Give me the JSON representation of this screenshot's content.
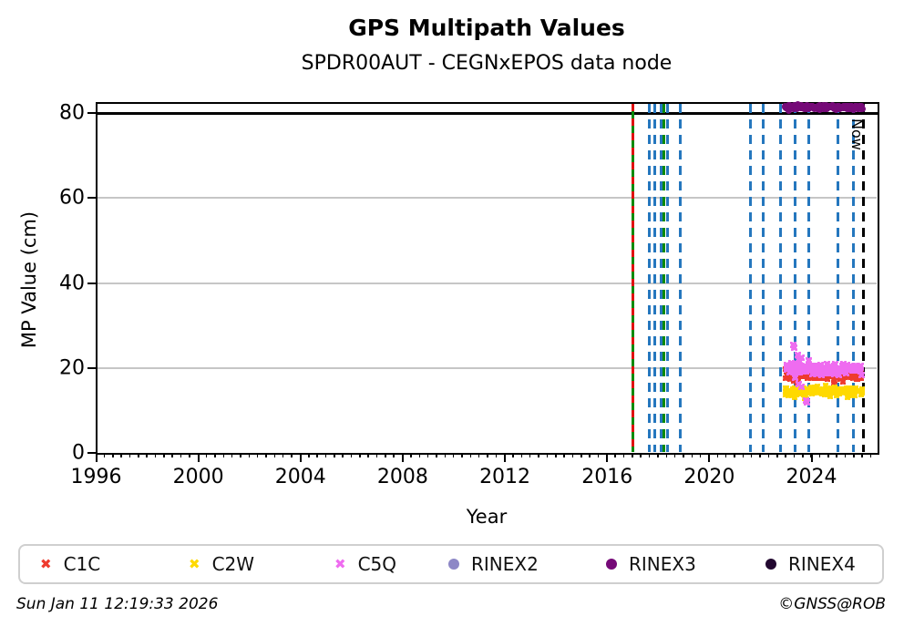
{
  "chart_data": {
    "type": "scatter",
    "title": "GPS Multipath Values",
    "subtitle": "SPDR00AUT - CEGNxEPOS data node",
    "xlabel": "Year",
    "ylabel": "MP Value (cm)",
    "xlim": [
      1995.96,
      2026.6
    ],
    "ylim": [
      0,
      82.4
    ],
    "xticks": [
      1996,
      2000,
      2004,
      2008,
      2012,
      2016,
      2020,
      2024
    ],
    "yticks": [
      0,
      20,
      40,
      60,
      80
    ],
    "grid_y": [
      20,
      40,
      60
    ],
    "grid_color": "#c6c6c6",
    "threshold_line": {
      "y": 80,
      "color": "#000000",
      "style": "solid"
    },
    "now_line": {
      "year": 2026.03,
      "label": "Now",
      "color": "#000000",
      "style": "dashed"
    },
    "event_lines": [
      {
        "year": 2017.0,
        "color": "#0a8a0a",
        "style": "solid",
        "overlay_color": "#e01111",
        "overlay_style": "dashed"
      },
      {
        "year": 2017.65,
        "color": "#2577be",
        "style": "dashed"
      },
      {
        "year": 2017.85,
        "color": "#2577be",
        "style": "dashed"
      },
      {
        "year": 2018.1,
        "color": "#2577be",
        "style": "dashed"
      },
      {
        "year": 2018.22,
        "color": "#0a8a0a",
        "style": "dashed"
      },
      {
        "year": 2018.38,
        "color": "#2577be",
        "style": "dashed"
      },
      {
        "year": 2018.85,
        "color": "#2577be",
        "style": "dashed"
      },
      {
        "year": 2021.6,
        "color": "#2577be",
        "style": "dashed"
      },
      {
        "year": 2022.1,
        "color": "#2577be",
        "style": "dashed"
      },
      {
        "year": 2022.8,
        "color": "#2577be",
        "style": "dashed"
      },
      {
        "year": 2023.35,
        "color": "#2577be",
        "style": "dashed"
      },
      {
        "year": 2023.9,
        "color": "#2577be",
        "style": "dashed"
      },
      {
        "year": 2025.05,
        "color": "#2577be",
        "style": "dashed"
      },
      {
        "year": 2025.65,
        "color": "#2577be",
        "style": "dashed"
      }
    ],
    "series": [
      {
        "name": "C1C",
        "marker": "x",
        "color": "#ee3b2e",
        "band": {
          "x_start": 2022.97,
          "x_end": 2025.98,
          "center": 18.3,
          "sigma": 0.55,
          "count": 180,
          "seed": 11
        },
        "extra_points": [
          [
            2023.45,
            16.6
          ],
          [
            2023.5,
            16.9
          ],
          [
            2024.15,
            20.0
          ],
          [
            2023.3,
            17.0
          ]
        ]
      },
      {
        "name": "C2W",
        "marker": "x",
        "color": "#ffd900",
        "band": {
          "x_start": 2022.97,
          "x_end": 2025.98,
          "center": 14.5,
          "sigma": 0.45,
          "count": 180,
          "seed": 22
        },
        "extra_points": [
          [
            2023.75,
            12.9
          ],
          [
            2023.78,
            13.3
          ],
          [
            2023.82,
            12.6
          ],
          [
            2024.55,
            15.9
          ]
        ]
      },
      {
        "name": "C5Q",
        "marker": "x",
        "color": "#ef6cf0",
        "band": {
          "x_start": 2022.97,
          "x_end": 2025.98,
          "center": 19.7,
          "sigma": 0.6,
          "count": 130,
          "seed": 33
        },
        "extra_points": [
          [
            2023.3,
            25.4
          ],
          [
            2023.32,
            24.8
          ],
          [
            2023.45,
            23.0
          ],
          [
            2023.5,
            21.9
          ],
          [
            2023.55,
            21.6
          ],
          [
            2023.62,
            22.4
          ],
          [
            2023.9,
            21.7
          ],
          [
            2023.35,
            17.8
          ],
          [
            2023.5,
            16.2
          ],
          [
            2023.62,
            15.6
          ],
          [
            2023.78,
            12.3
          ],
          [
            2023.83,
            12.0
          ],
          [
            2024.6,
            20.9
          ],
          [
            2025.25,
            20.6
          ]
        ]
      },
      {
        "name": "RINEX2",
        "marker": "circle",
        "color": "#8d87c6",
        "points": []
      },
      {
        "name": "RINEX3",
        "marker": "circle",
        "color": "#760a78",
        "band": {
          "x_start": 2022.97,
          "x_end": 2026.0,
          "center": 81.3,
          "sigma": 0.22,
          "count": 280,
          "seed": 44,
          "gaps": [
            [
              2025.12,
              2025.26
            ]
          ]
        },
        "extra_points": []
      },
      {
        "name": "RINEX4",
        "marker": "circle",
        "color": "#220830",
        "points": []
      }
    ],
    "legend": [
      {
        "label": "C1C",
        "marker": "x",
        "color": "#ee3b2e"
      },
      {
        "label": "C2W",
        "marker": "x",
        "color": "#ffd900"
      },
      {
        "label": "C5Q",
        "marker": "x",
        "color": "#ef6cf0"
      },
      {
        "label": "RINEX2",
        "marker": "circle",
        "color": "#8d87c6"
      },
      {
        "label": "RINEX3",
        "marker": "circle",
        "color": "#760a78"
      },
      {
        "label": "RINEX4",
        "marker": "circle",
        "color": "#220830"
      }
    ]
  },
  "footer": {
    "timestamp": "Sun Jan 11 12:19:33 2026",
    "credit": "©GNSS@ROB"
  }
}
